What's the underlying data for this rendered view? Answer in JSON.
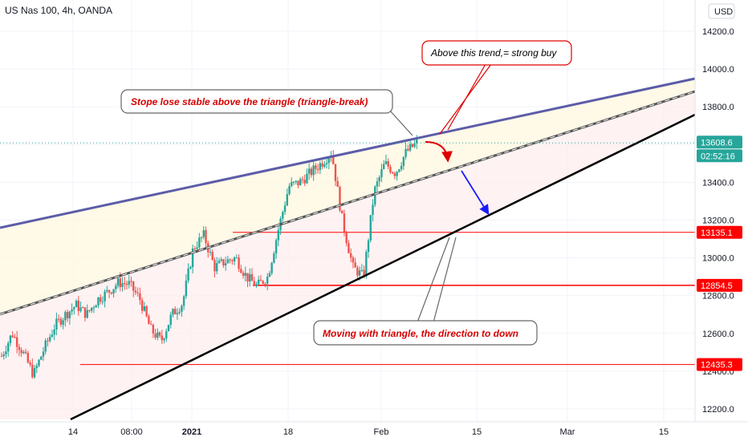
{
  "header": {
    "symbol_title": "US Nas 100, 4h, OANDA",
    "currency_button": "USD"
  },
  "chart_data": {
    "type": "line",
    "title": "US Nas 100, 4h, OANDA",
    "xlabel": "",
    "ylabel": "",
    "currency": "USD",
    "ylim": [
      12120,
      14280
    ],
    "x_ticks": [
      "14",
      "08:00",
      "2021",
      "18",
      "Feb",
      "15",
      "Mar",
      "15"
    ],
    "y_ticks": [
      12200.0,
      12400.0,
      12600.0,
      12800.0,
      13000.0,
      13200.0,
      13400.0,
      13600.0,
      13800.0,
      14000.0,
      14200.0
    ],
    "y_tick_labels": [
      "12200.0",
      "12400.0",
      "12600.0",
      "12800.0",
      "13000.0",
      "13200.0",
      "13400.0",
      "13600.0",
      "13800.0",
      "14000.0",
      "14200.0"
    ],
    "price_path": [
      {
        "t": "Dec 10",
        "v": 12480
      },
      {
        "t": "Dec 11",
        "v": 12600
      },
      {
        "t": "Dec 14",
        "v": 12500
      },
      {
        "t": "Dec 15",
        "v": 12380
      },
      {
        "t": "Dec 16",
        "v": 12520
      },
      {
        "t": "Dec 17",
        "v": 12640
      },
      {
        "t": "Dec 18",
        "v": 12700
      },
      {
        "t": "Dec 21",
        "v": 12750
      },
      {
        "t": "Dec 22",
        "v": 12700
      },
      {
        "t": "Dec 23",
        "v": 12780
      },
      {
        "t": "Dec 24",
        "v": 12820
      },
      {
        "t": "Dec 28",
        "v": 12870
      },
      {
        "t": "Dec 29",
        "v": 12860
      },
      {
        "t": "Dec 30",
        "v": 12780
      },
      {
        "t": "Dec 31",
        "v": 12620
      },
      {
        "t": "Jan 04",
        "v": 12560
      },
      {
        "t": "Jan 05",
        "v": 12700
      },
      {
        "t": "Jan 06",
        "v": 12760
      },
      {
        "t": "Jan 07",
        "v": 13050
      },
      {
        "t": "Jan 08",
        "v": 13120
      },
      {
        "t": "Jan 11",
        "v": 12950
      },
      {
        "t": "Jan 12",
        "v": 12980
      },
      {
        "t": "Jan 13",
        "v": 13000
      },
      {
        "t": "Jan 14",
        "v": 12900
      },
      {
        "t": "Jan 15",
        "v": 12850
      },
      {
        "t": "Jan 19",
        "v": 12900
      },
      {
        "t": "Jan 20",
        "v": 13150
      },
      {
        "t": "Jan 21",
        "v": 13380
      },
      {
        "t": "Jan 22",
        "v": 13400
      },
      {
        "t": "Jan 25",
        "v": 13450
      },
      {
        "t": "Jan 26",
        "v": 13500
      },
      {
        "t": "Jan 27",
        "v": 13560
      },
      {
        "t": "Jan 28",
        "v": 13200
      },
      {
        "t": "Jan 29",
        "v": 12950
      },
      {
        "t": "Feb 01",
        "v": 12900
      },
      {
        "t": "Feb 02",
        "v": 13350
      },
      {
        "t": "Feb 03",
        "v": 13500
      },
      {
        "t": "Feb 04",
        "v": 13450
      },
      {
        "t": "Feb 05",
        "v": 13560
      },
      {
        "t": "Feb 08",
        "v": 13608.6
      }
    ],
    "last_price": "13608.6",
    "countdown": "02:52:16",
    "levels": [
      {
        "value": 13135.1,
        "label": "13135.1",
        "color": "#ff0000"
      },
      {
        "value": 12854.5,
        "label": "12854.5",
        "color": "#ff0000"
      },
      {
        "value": 12435.3,
        "label": "12435.3",
        "color": "#ff0000"
      }
    ],
    "annotations": [
      "Above this trend,= strong buy",
      "Stope lose stable above the triangle (triangle-break)",
      "Moving with triangle, the direction to down"
    ],
    "colors": {
      "up": "#26a69a",
      "down": "#ef5350",
      "upper_trend": "#5c5ca8",
      "lower_trend": "#000000",
      "annotation_text": "#d50000",
      "arrow_blue": "#1a1aff",
      "price_tag": "#26a69a",
      "level_tag": "#ff0000"
    }
  }
}
